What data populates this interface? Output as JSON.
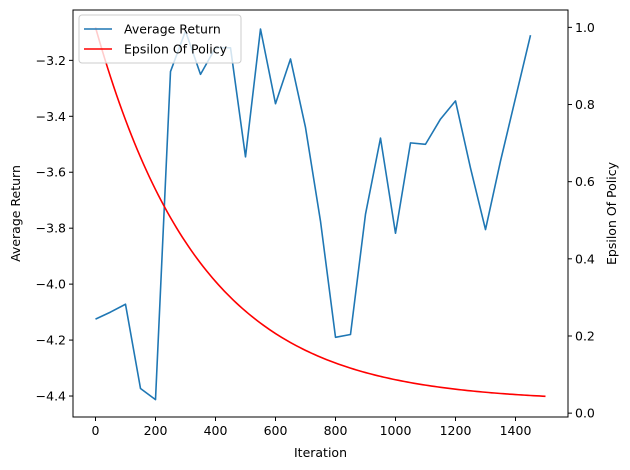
{
  "chart_data": {
    "type": "line",
    "xlabel": "Iteration",
    "ylabel_left": "Average Return",
    "ylabel_right": "Epsilon Of Policy",
    "xlim": [
      -75,
      1575
    ],
    "ylim_left": [
      -4.475,
      -3.02
    ],
    "ylim_right": [
      -0.01,
      1.045
    ],
    "xticks": [
      0,
      200,
      400,
      600,
      800,
      1000,
      1200,
      1400
    ],
    "xtick_labels": [
      "0",
      "200",
      "400",
      "600",
      "800",
      "1000",
      "1200",
      "1400"
    ],
    "yticks_left": [
      -3.2,
      -3.4,
      -3.6,
      -3.8,
      -4.0,
      -4.2,
      -4.4
    ],
    "ytick_labels_left": [
      "−3.2",
      "−3.4",
      "−3.6",
      "−3.8",
      "−4.0",
      "−4.2",
      "−4.4"
    ],
    "yticks_right": [
      1.0,
      0.8,
      0.6,
      0.4,
      0.2,
      0.0
    ],
    "ytick_labels_right": [
      "1.0",
      "0.8",
      "0.6",
      "0.4",
      "0.2",
      "0.0"
    ],
    "grid": false,
    "legend_position": "top-left",
    "series": [
      {
        "name": "Average Return",
        "color": "#1f77b4",
        "axis": "left",
        "x": [
          0,
          50,
          100,
          150,
          200,
          250,
          300,
          350,
          400,
          450,
          500,
          550,
          600,
          650,
          700,
          750,
          800,
          850,
          900,
          950,
          1000,
          1050,
          1100,
          1150,
          1200,
          1250,
          1300,
          1350,
          1400,
          1450
        ],
        "y": [
          -4.125,
          -4.1,
          -4.072,
          -4.373,
          -4.413,
          -3.24,
          -3.095,
          -3.25,
          -3.155,
          -3.155,
          -3.545,
          -3.088,
          -3.355,
          -3.195,
          -3.44,
          -3.775,
          -4.19,
          -4.18,
          -3.75,
          -3.478,
          -3.818,
          -3.495,
          -3.5,
          -3.41,
          -3.345,
          -3.585,
          -3.805,
          -3.56,
          -3.335,
          -3.11
        ]
      },
      {
        "name": "Epsilon Of Policy",
        "color": "#ff0000",
        "axis": "right",
        "x_start": 0,
        "x_end": 1500,
        "formula": "0.03 + 0.97 * exp(-x / 352)"
      }
    ]
  }
}
